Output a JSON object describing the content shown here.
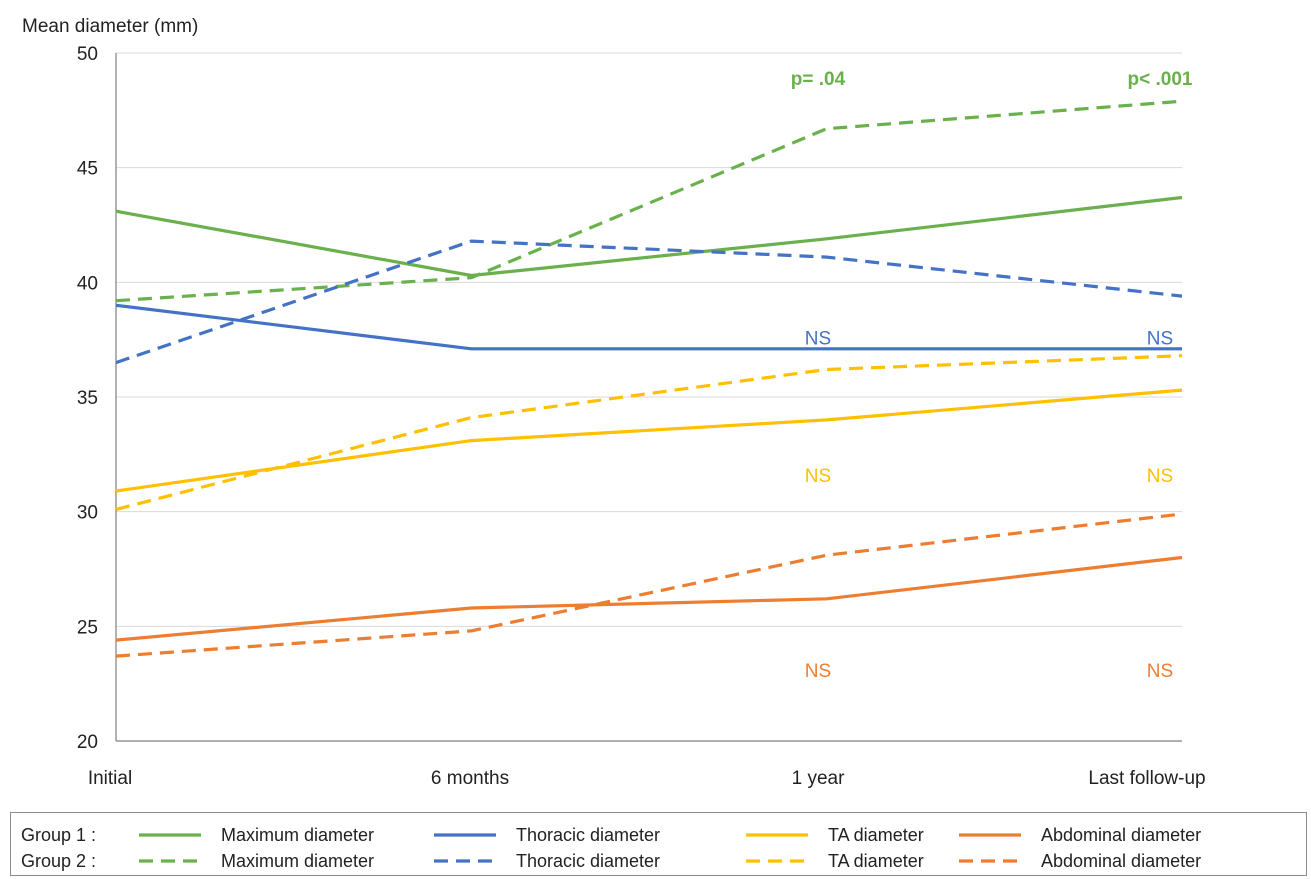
{
  "chart_data": {
    "type": "line",
    "ylabel": "Mean diameter (mm)",
    "xlabel": "",
    "title": "",
    "ylim": [
      20,
      50
    ],
    "yticks": [
      20,
      25,
      30,
      35,
      40,
      45,
      50
    ],
    "categories": [
      "Initial",
      "6 months",
      "1 year",
      "Last follow-up"
    ],
    "grid": true,
    "legend_position": "bottom",
    "groups": [
      "Group 1 :",
      "Group 2 :"
    ],
    "series": [
      {
        "name": "Maximum diameter",
        "group": "Group 1 :",
        "color": "#6ab04c",
        "dash": "solid",
        "values": [
          43.1,
          40.3,
          41.9,
          43.7
        ]
      },
      {
        "name": "Thoracic diameter",
        "group": "Group 1 :",
        "color": "#4472c4",
        "dash": "solid",
        "values": [
          39.0,
          37.1,
          37.1,
          37.1
        ]
      },
      {
        "name": "TA diameter",
        "group": "Group 1 :",
        "color": "#ffc000",
        "dash": "solid",
        "values": [
          30.9,
          33.1,
          34.0,
          35.3
        ]
      },
      {
        "name": "Abdominal diameter",
        "group": "Group 1 :",
        "color": "#ed7d31",
        "dash": "solid",
        "values": [
          24.4,
          25.8,
          26.2,
          28.0
        ]
      },
      {
        "name": "Maximum diameter",
        "group": "Group 2 :",
        "color": "#6ab04c",
        "dash": "dashed",
        "values": [
          39.2,
          40.2,
          46.7,
          47.9
        ]
      },
      {
        "name": "Thoracic diameter",
        "group": "Group 2 :",
        "color": "#4472c4",
        "dash": "dashed",
        "values": [
          36.5,
          41.8,
          41.1,
          39.4
        ]
      },
      {
        "name": "TA diameter",
        "group": "Group 2 :",
        "color": "#ffc000",
        "dash": "dashed",
        "values": [
          30.1,
          34.1,
          36.2,
          36.8
        ]
      },
      {
        "name": "Abdominal diameter",
        "group": "Group 2 :",
        "color": "#ed7d31",
        "dash": "dashed",
        "values": [
          23.7,
          24.8,
          28.1,
          29.9
        ]
      }
    ],
    "annotations": [
      {
        "text": "p= .04",
        "category": "1 year",
        "y": 48.9,
        "color": "#6ab04c",
        "bold": true
      },
      {
        "text": "p< .001",
        "category": "Last follow-up",
        "y": 48.9,
        "color": "#6ab04c",
        "bold": true
      },
      {
        "text": "NS",
        "category": "1 year",
        "y": 37.6,
        "color": "#4472c4",
        "bold": false
      },
      {
        "text": "NS",
        "category": "Last follow-up",
        "y": 37.6,
        "color": "#4472c4",
        "bold": false
      },
      {
        "text": "NS",
        "category": "1 year",
        "y": 31.6,
        "color": "#ffc000",
        "bold": false
      },
      {
        "text": "NS",
        "category": "Last follow-up",
        "y": 31.6,
        "color": "#ffc000",
        "bold": false
      },
      {
        "text": "NS",
        "category": "1 year",
        "y": 23.1,
        "color": "#ed7d31",
        "bold": false
      },
      {
        "text": "NS",
        "category": "Last follow-up",
        "y": 23.1,
        "color": "#ed7d31",
        "bold": false
      }
    ]
  }
}
